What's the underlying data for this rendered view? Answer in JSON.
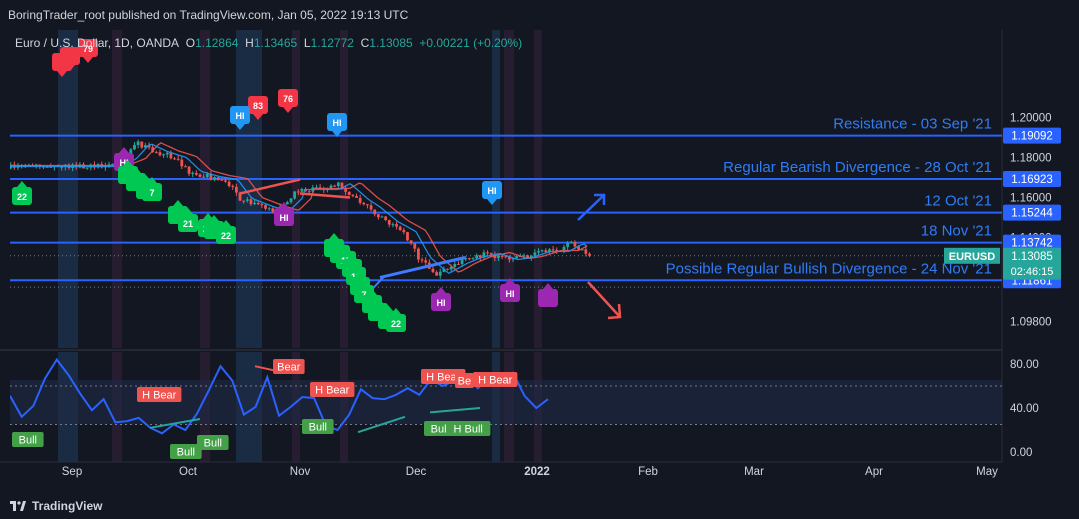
{
  "header": {
    "published": "BoringTrader_root published on TradingView.com, Jan 05, 2022 19:13 UTC"
  },
  "legend": {
    "symbol": "Euro / U.S. Dollar, 1D, OANDA",
    "o_label": "O",
    "o": "1.12864",
    "h_label": "H",
    "h": "1.13465",
    "l_label": "L",
    "l": "1.12772",
    "c_label": "C",
    "c": "1.13085",
    "change": "+0.00221 (+0.20%)"
  },
  "price_tag": {
    "symbol": "EURUSD",
    "price": "1.13085",
    "countdown": "02:46:15"
  },
  "footer": {
    "brand": "TradingView"
  },
  "colors": {
    "bg": "#131722",
    "up": "#26a69a",
    "down": "#ef5350",
    "line": "#2962ff",
    "text": "#d1d4dc"
  },
  "chart_data": {
    "type": "line",
    "price_axis": {
      "ticks": [
        "1.20000",
        "1.18000",
        "1.16000",
        "1.14000",
        "1.09800"
      ],
      "range": [
        1.09,
        1.205
      ]
    },
    "x_axis": {
      "ticks": [
        "Sep",
        "Oct",
        "Nov",
        "Dec",
        "2022",
        "Feb",
        "Mar",
        "Apr",
        "May"
      ]
    },
    "series": [
      {
        "x": [
          "Aug 20",
          "Aug 25",
          "Aug 30",
          "Sep 03",
          "Sep 08",
          "Sep 13",
          "Sep 17",
          "Sep 22",
          "Sep 27",
          "Oct 01",
          "Oct 06",
          "Oct 11",
          "Oct 15",
          "Oct 20",
          "Oct 25",
          "Oct 28",
          "Nov 02",
          "Nov 05",
          "Nov 10",
          "Nov 15",
          "Nov 19",
          "Nov 24",
          "Nov 29",
          "Dec 03",
          "Dec 08",
          "Dec 13",
          "Dec 17",
          "Dec 22",
          "Dec 27",
          "Dec 31",
          "Jan 05"
        ],
        "values": [
          1.1725,
          1.1755,
          1.179,
          1.187,
          1.1828,
          1.18,
          1.173,
          1.1705,
          1.169,
          1.1595,
          1.156,
          1.153,
          1.16,
          1.162,
          1.164,
          1.167,
          1.159,
          1.1555,
          1.148,
          1.143,
          1.13,
          1.122,
          1.127,
          1.13,
          1.132,
          1.129,
          1.13,
          1.133,
          1.133,
          1.137,
          1.13085
        ]
      }
    ],
    "levels": [
      {
        "label": "Resistance - 03 Sep '21",
        "value": "1.19092"
      },
      {
        "label": "Regular Bearish Divergence - 28 Oct '21",
        "value": "1.16923"
      },
      {
        "label": "12 Oct '21",
        "value": "1.15244"
      },
      {
        "label": "18 Nov '21",
        "value": "1.13742"
      },
      {
        "label": "Possible Regular Bullish Divergence - 24 Nov '21",
        "value": "1.11861"
      }
    ],
    "markers": [
      "79",
      "83",
      "76",
      "HI",
      "HI",
      "HI",
      "HI",
      "HI",
      "HI",
      "HI",
      "22",
      "21",
      "20",
      "22",
      "7",
      "17",
      "16",
      "7",
      "22"
    ],
    "rsi": {
      "ticks": [
        "80.00",
        "40.00",
        "0.00"
      ],
      "range": [
        0,
        100
      ],
      "values": [
        51,
        32,
        42,
        67,
        84,
        70,
        53,
        38,
        48,
        27,
        28,
        31,
        22,
        17,
        25,
        20,
        35,
        56,
        78,
        65,
        34,
        41,
        68,
        33,
        41,
        50,
        49,
        24,
        20,
        34,
        57,
        49,
        48,
        52,
        58,
        52,
        66,
        60,
        65,
        70,
        58,
        67,
        66,
        72,
        51,
        40,
        48
      ],
      "labels": [
        "Bull",
        "H Bear",
        "Bull",
        "Bull",
        "Bear",
        "H Bear",
        "Bull",
        "H Bear",
        "Be",
        "H Bear",
        "Bull",
        "H Bull"
      ]
    }
  }
}
